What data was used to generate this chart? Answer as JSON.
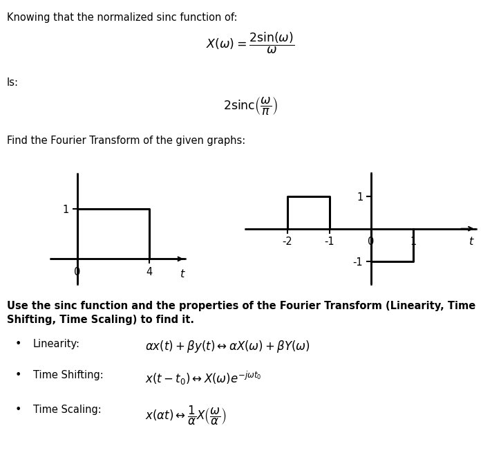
{
  "title_text": "Knowing that the normalized sinc function of:",
  "formula1": "$X(\\omega) = \\dfrac{2\\sin(\\omega)}{\\omega}$",
  "is_text": "Is:",
  "formula2": "$2\\mathrm{sinc}\\left(\\dfrac{\\omega}{\\pi}\\right)$",
  "find_text": "Find the Fourier Transform of the given graphs:",
  "bold_line1": "Use the sinc function and the properties of the Fourier Transform (Linearity, Time",
  "bold_line2": "Shifting, Time Scaling) to find it.",
  "bullet1_label": "Linearity:",
  "bullet1_formula": "$\\alpha x(t) + \\beta y(t) \\leftrightarrow \\alpha X(\\omega) + \\beta Y(\\omega)$",
  "bullet2_label": "Time Shifting:",
  "bullet2_formula": "$x(t - t_0) \\leftrightarrow X(\\omega)e^{-j\\omega t_0}$",
  "bullet3_label": "Time Scaling:",
  "bullet3_formula": "$x(\\alpha t) \\leftrightarrow \\dfrac{1}{\\alpha}X\\left(\\dfrac{\\omega}{\\alpha}\\right)$",
  "bg_color": "#ffffff",
  "text_color": "#000000",
  "font_size": 10.5
}
